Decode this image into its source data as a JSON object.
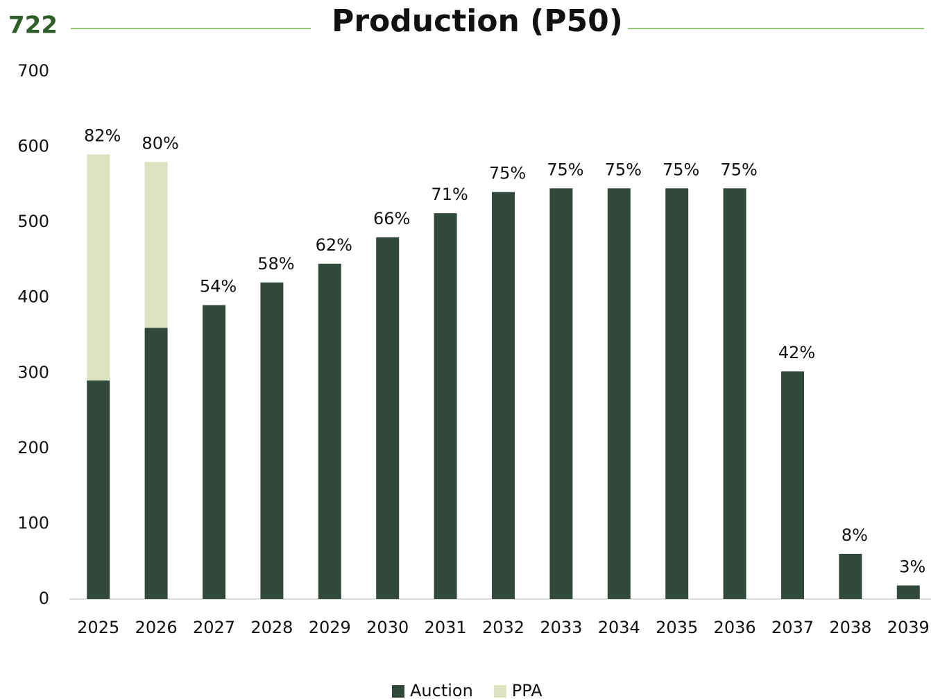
{
  "chart_data": {
    "type": "stacked-bar",
    "title": "Production (P50)",
    "annotation": "722",
    "categories": [
      "2025",
      "2026",
      "2027",
      "2028",
      "2029",
      "2030",
      "2031",
      "2032",
      "2033",
      "2034",
      "2035",
      "2036",
      "2037",
      "2038",
      "2039"
    ],
    "series": [
      {
        "name": "Auction",
        "color": "#324a3c",
        "values": [
          290,
          360,
          390,
          420,
          445,
          480,
          512,
          540,
          545,
          545,
          545,
          545,
          302,
          60,
          18
        ]
      },
      {
        "name": "PPA",
        "color": "#dce3c0",
        "values": [
          300,
          220,
          0,
          0,
          0,
          0,
          0,
          0,
          0,
          0,
          0,
          0,
          0,
          0,
          0
        ]
      }
    ],
    "bar_labels": [
      "82%",
      "80%",
      "54%",
      "58%",
      "62%",
      "66%",
      "71%",
      "75%",
      "75%",
      "75%",
      "75%",
      "75%",
      "42%",
      "8%",
      "3%"
    ],
    "ylim": [
      0,
      700
    ],
    "yticks": [
      0,
      100,
      200,
      300,
      400,
      500,
      600,
      700
    ],
    "grid": false,
    "legend": "bottom"
  }
}
